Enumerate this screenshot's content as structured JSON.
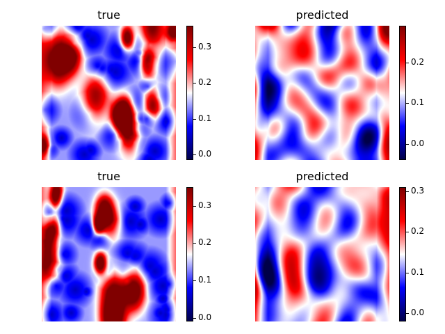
{
  "chart_data": [
    {
      "type": "heatmap",
      "title": "true",
      "colormap": "seismic",
      "colorbar": {
        "min": -0.015,
        "max": 0.36,
        "ticks": [
          0.0,
          0.1,
          0.2,
          0.3
        ],
        "tick_labels": [
          "0.0",
          "0.1",
          "0.2",
          "0.3"
        ]
      },
      "pattern": "blobs",
      "seed": 1
    },
    {
      "type": "heatmap",
      "title": "predicted",
      "colormap": "seismic",
      "colorbar": {
        "min": -0.04,
        "max": 0.29,
        "ticks": [
          0.0,
          0.1,
          0.2
        ],
        "tick_labels": [
          "0.0",
          "0.1",
          "0.2"
        ]
      },
      "pattern": "stripes",
      "seed": 2
    },
    {
      "type": "heatmap",
      "title": "true",
      "colormap": "seismic",
      "colorbar": {
        "min": -0.01,
        "max": 0.35,
        "ticks": [
          0.0,
          0.1,
          0.2,
          0.3
        ],
        "tick_labels": [
          "0.0",
          "0.1",
          "0.2",
          "0.3"
        ]
      },
      "pattern": "blobs",
      "seed": 3
    },
    {
      "type": "heatmap",
      "title": "predicted",
      "colormap": "seismic",
      "colorbar": {
        "min": -0.02,
        "max": 0.31,
        "ticks": [
          0.0,
          0.1,
          0.2,
          0.3
        ],
        "tick_labels": [
          "0.0",
          "0.1",
          "0.2",
          "0.3"
        ]
      },
      "pattern": "stripes",
      "seed": 4
    }
  ]
}
